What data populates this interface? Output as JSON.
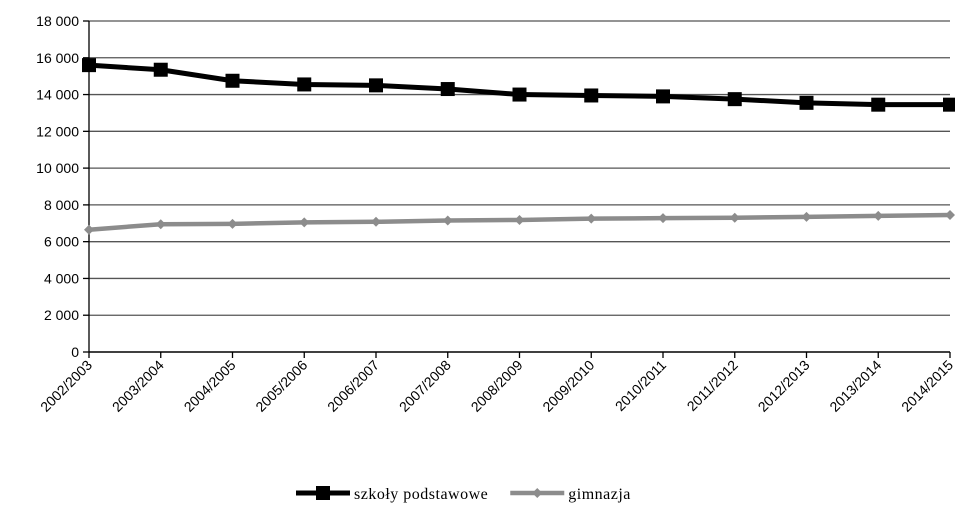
{
  "chart_data": {
    "type": "line",
    "title": "",
    "xlabel": "",
    "ylabel": "",
    "categories": [
      "2002/2003",
      "2003/2004",
      "2004/2005",
      "2005/2006",
      "2006/2007",
      "2007/2008",
      "2008/2009",
      "2009/2010",
      "2010/2011",
      "2011/2012",
      "2012/2013",
      "2013/2014",
      "2014/2015"
    ],
    "ylim": [
      0,
      18000
    ],
    "yticks": [
      0,
      2000,
      4000,
      6000,
      8000,
      10000,
      12000,
      14000,
      16000,
      18000
    ],
    "ytick_labels": [
      "0",
      "2 000",
      "4 000",
      "6 000",
      "8 000",
      "10 000",
      "12 000",
      "14 000",
      "16 000",
      "18 000"
    ],
    "grid": true,
    "legend_position": "bottom",
    "series": [
      {
        "name": "szkoły podstawowe",
        "color": "#000000",
        "marker": "square",
        "values": [
          15600,
          15350,
          14750,
          14550,
          14500,
          14300,
          14000,
          13950,
          13900,
          13750,
          13550,
          13450,
          13450
        ]
      },
      {
        "name": "gimnazja",
        "color": "#8c8c8c",
        "marker": "diamond",
        "values": [
          6650,
          6950,
          6970,
          7050,
          7080,
          7150,
          7180,
          7250,
          7280,
          7300,
          7350,
          7400,
          7450
        ]
      }
    ]
  }
}
